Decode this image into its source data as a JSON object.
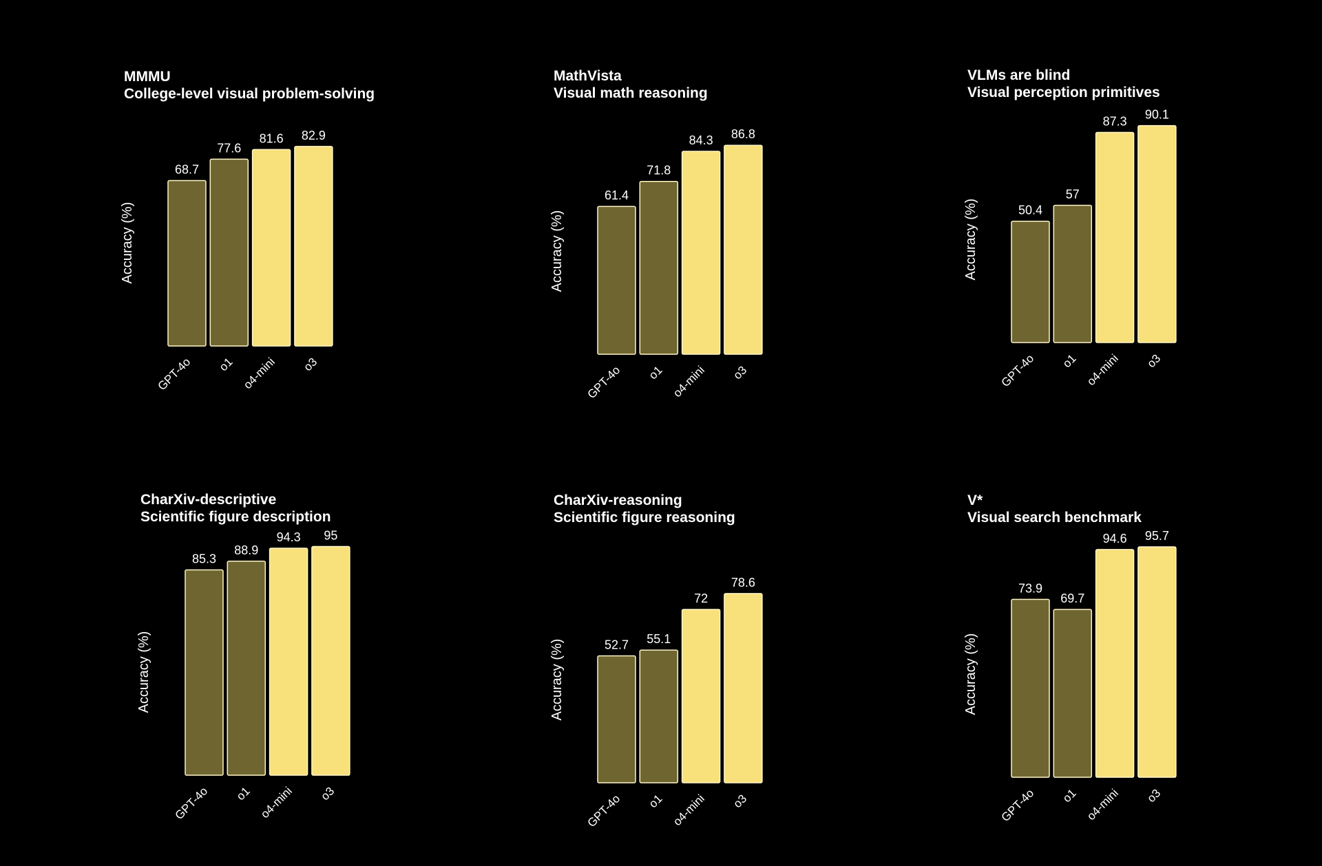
{
  "colors": {
    "background": "#000000",
    "baseline_model": "#6e6530",
    "new_model": "#f8e07a",
    "bar_stroke": "#fff6c8",
    "text": "#ffffff"
  },
  "chart_data": [
    {
      "type": "bar",
      "title": "MMMU",
      "subtitle": "College-level visual problem-solving",
      "ylabel": "Accuracy (%)",
      "categories": [
        "GPT-4o",
        "o1",
        "o4-mini",
        "o3"
      ],
      "values": [
        68.7,
        77.6,
        81.6,
        82.9
      ],
      "highlight": [
        false,
        false,
        true,
        true
      ],
      "ylim": [
        0,
        100
      ],
      "grid": false,
      "legend": "none"
    },
    {
      "type": "bar",
      "title": "MathVista",
      "subtitle": "Visual math reasoning",
      "ylabel": "Accuracy (%)",
      "categories": [
        "GPT-4o",
        "o1",
        "o4-mini",
        "o3"
      ],
      "values": [
        61.4,
        71.8,
        84.3,
        86.8
      ],
      "highlight": [
        false,
        false,
        true,
        true
      ],
      "ylim": [
        0,
        100
      ],
      "grid": false,
      "legend": "none"
    },
    {
      "type": "bar",
      "title": "VLMs are blind",
      "subtitle": "Visual perception primitives",
      "ylabel": "Accuracy (%)",
      "categories": [
        "GPT-4o",
        "o1",
        "o4-mini",
        "o3"
      ],
      "values": [
        50.4,
        57,
        87.3,
        90.1
      ],
      "highlight": [
        false,
        false,
        true,
        true
      ],
      "ylim": [
        0,
        100
      ],
      "grid": false,
      "legend": "none"
    },
    {
      "type": "bar",
      "title": "CharXiv-descriptive",
      "subtitle": "Scientific figure description",
      "ylabel": "Accuracy (%)",
      "categories": [
        "GPT-4o",
        "o1",
        "o4-mini",
        "o3"
      ],
      "values": [
        85.3,
        88.9,
        94.3,
        95
      ],
      "highlight": [
        false,
        false,
        true,
        true
      ],
      "ylim": [
        0,
        100
      ],
      "grid": false,
      "legend": "none"
    },
    {
      "type": "bar",
      "title": "CharXiv-reasoning",
      "subtitle": "Scientific figure reasoning",
      "ylabel": "Accuracy (%)",
      "categories": [
        "GPT-4o",
        "o1",
        "o4-mini",
        "o3"
      ],
      "values": [
        52.7,
        55.1,
        72,
        78.6
      ],
      "highlight": [
        false,
        false,
        true,
        true
      ],
      "ylim": [
        0,
        100
      ],
      "grid": false,
      "legend": "none"
    },
    {
      "type": "bar",
      "title": "V*",
      "subtitle": "Visual search benchmark",
      "ylabel": "Accuracy (%)",
      "categories": [
        "GPT-4o",
        "o1",
        "o4-mini",
        "o3"
      ],
      "values": [
        73.9,
        69.7,
        94.6,
        95.7
      ],
      "highlight": [
        false,
        false,
        true,
        true
      ],
      "ylim": [
        0,
        100
      ],
      "grid": false,
      "legend": "none"
    }
  ]
}
